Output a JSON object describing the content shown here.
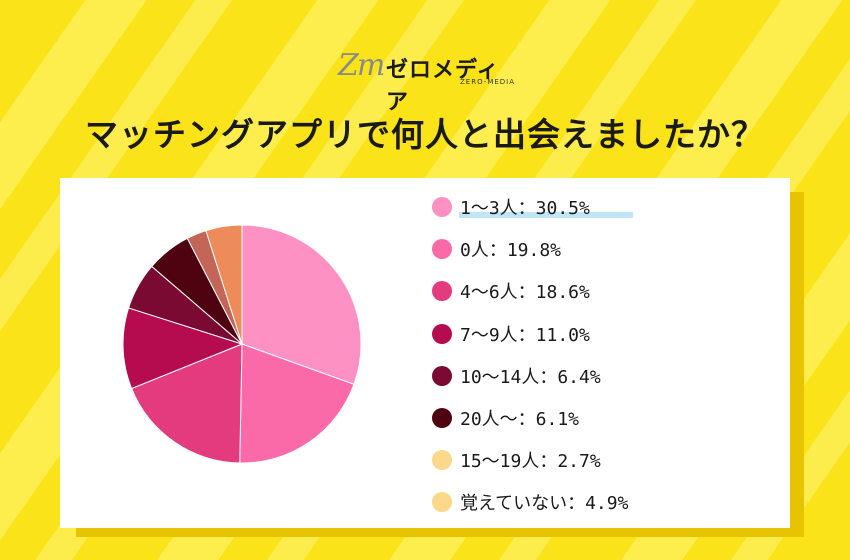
{
  "logo": {
    "mark": "Zm",
    "name": "ゼロメディア",
    "sub": "ZERO-MEDIA"
  },
  "title": "マッチングアプリで何人と出会えましたか？",
  "chart_data": {
    "type": "pie",
    "title": "マッチングアプリで何人と出会えましたか？",
    "slices": [
      {
        "label": "1〜3人：30.5%",
        "value": 30.5,
        "color": "#fd91c3"
      },
      {
        "label": "0人：19.8%",
        "value": 19.8,
        "color": "#fb6aa8"
      },
      {
        "label": "4〜6人：18.6%",
        "value": 18.6,
        "color": "#e43a7e"
      },
      {
        "label": "7〜9人：11.0%",
        "value": 11.0,
        "color": "#b40c4e"
      },
      {
        "label": "10〜14人：6.4%",
        "value": 6.4,
        "color": "#7a0a32"
      },
      {
        "label": "20人〜：6.1%",
        "value": 6.1,
        "color": "#4f0210"
      },
      {
        "label": "15〜19人：2.7%",
        "value": 2.7,
        "color": "#c36658"
      },
      {
        "label": "覚えていない：4.9%",
        "value": 4.9,
        "color": "#ed8b5a"
      }
    ],
    "legend_colors": [
      "#fd91c3",
      "#fb6aa8",
      "#e43a7e",
      "#b40c4e",
      "#7a0a32",
      "#4f0210",
      "#fcd98a",
      "#fcd98a"
    ],
    "legend_position": "right"
  }
}
